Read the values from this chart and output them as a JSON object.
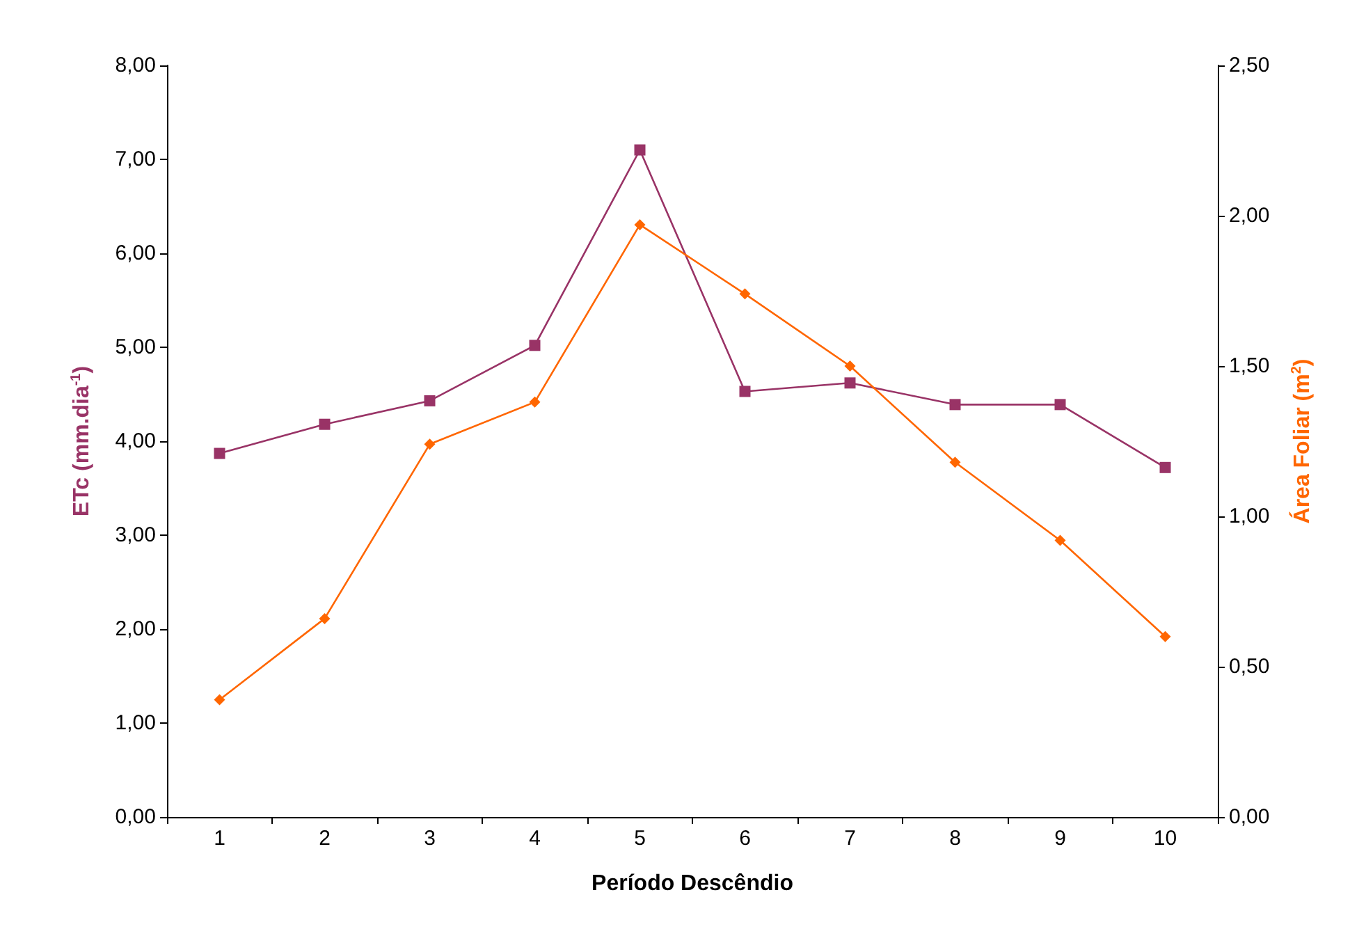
{
  "chart_data": {
    "type": "line",
    "xlabel": "Período Descêndio",
    "ylabel": "ETc (mm.dia$^{-1}$)",
    "y2label": "Área Foliar (m$^{2}$)",
    "categories": [
      "1",
      "2",
      "3",
      "4",
      "5",
      "6",
      "7",
      "8",
      "9",
      "10"
    ],
    "series": [
      {
        "color": "#993366",
        "marker": "square",
        "values": [
          3.87,
          4.18,
          4.43,
          5.02,
          7.1,
          4.53,
          4.62,
          4.39,
          4.39,
          3.72
        ]
      },
      {
        "color": "#ff6600",
        "marker": "diamond",
        "axis": "y2",
        "values": [
          0.39,
          0.66,
          1.24,
          1.38,
          1.97,
          1.74,
          1.5,
          1.18,
          0.92,
          0.6
        ]
      }
    ],
    "ylim": [
      0,
      8
    ],
    "yticks": [
      {
        "value": 0,
        "label": "0,00"
      },
      {
        "value": 1,
        "label": "1,00"
      },
      {
        "value": 2,
        "label": "2,00"
      },
      {
        "value": 3,
        "label": "3,00"
      },
      {
        "value": 4,
        "label": "4,00"
      },
      {
        "value": 5,
        "label": "5,00"
      },
      {
        "value": 6,
        "label": "6,00"
      },
      {
        "value": 7,
        "label": "7,00"
      },
      {
        "value": 8,
        "label": "8,00"
      }
    ],
    "y2lim": [
      0,
      2.5
    ],
    "y2ticks": [
      {
        "value": 0,
        "label": "0,00"
      },
      {
        "value": 0.5,
        "label": "0,50"
      },
      {
        "value": 1,
        "label": "1,00"
      },
      {
        "value": 1.5,
        "label": "1,50"
      },
      {
        "value": 2,
        "label": "2,00"
      },
      {
        "value": 2.5,
        "label": "2,50"
      }
    ],
    "grid": false,
    "line_style": "solid"
  }
}
